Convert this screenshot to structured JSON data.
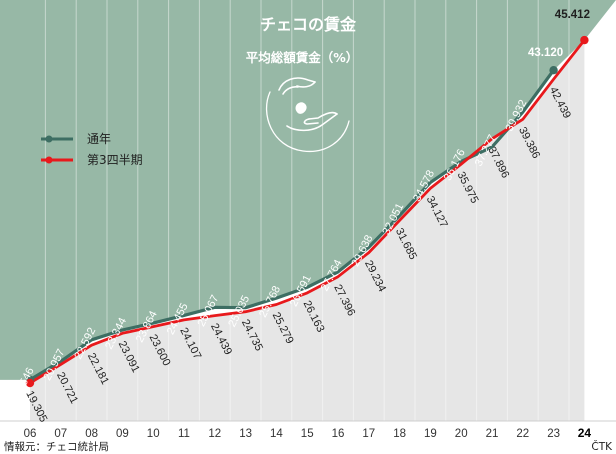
{
  "chart_data": {
    "type": "line",
    "title": "チェコの賃金",
    "subtitle": "平均総額賃金（%）",
    "categories": [
      "06",
      "07",
      "08",
      "09",
      "10",
      "11",
      "12",
      "13",
      "14",
      "15",
      "16",
      "17",
      "18",
      "19",
      "20",
      "21",
      "22",
      "23",
      "24"
    ],
    "series": [
      {
        "name": "通年",
        "color": "#3d6e63",
        "values": [
          19546,
          20957,
          22592,
          23344,
          23864,
          24455,
          25067,
          25035,
          25768,
          26591,
          27764,
          29638,
          32051,
          34578,
          36176,
          37277,
          39932,
          43120,
          null
        ],
        "labels": [
          "19.546",
          "20.957",
          "22.592",
          "23.344",
          "23.864",
          "24.455",
          "25.067",
          "25.035",
          "25.768",
          "26.591",
          "27.764",
          "29.638",
          "32.051",
          "34.578",
          "36.176",
          "37.277",
          "39.932",
          "43.120",
          ""
        ]
      },
      {
        "name": "第3四半期",
        "color": "#e8191c",
        "values": [
          19305,
          20721,
          22181,
          23091,
          23600,
          24107,
          24439,
          24735,
          25279,
          26163,
          27396,
          29234,
          31685,
          34127,
          35975,
          37896,
          39386,
          42439,
          45412
        ],
        "labels": [
          "19.305",
          "20.721",
          "22.181",
          "23.091",
          "23.600",
          "24.107",
          "24.439",
          "24.735",
          "25.279",
          "26.163",
          "27.396",
          "29.234",
          "31.685",
          "34.127",
          "35.975",
          "37.896",
          "39.386",
          "42.439",
          "45.412"
        ]
      }
    ],
    "legend_position": "left",
    "grid": false
  },
  "footer": {
    "source": "情報元：チェコ統計局",
    "credit": "ČTK"
  },
  "colors": {
    "panel": "#97b8a6",
    "panel_area": "#e6e6e6"
  },
  "icons": {
    "hands": "hands-coin-icon"
  }
}
